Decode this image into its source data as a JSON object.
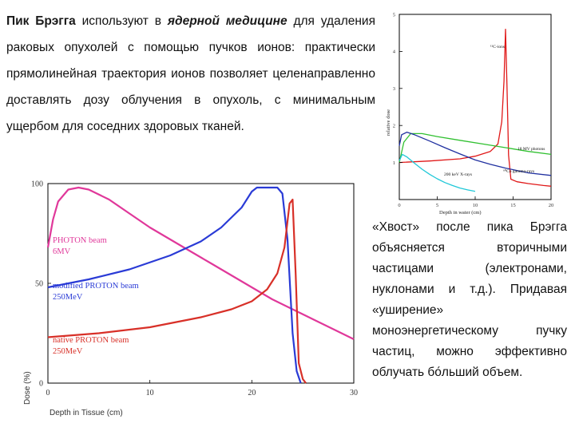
{
  "text_top": {
    "term": "Пик Брэгга",
    "part1": " используют в ",
    "emph": "ядерной медицине",
    "part2": " для удаления раковых опухолей с помощью пучков ионов: практически прямолинейная траектория ионов позволяет целенаправленно доставлять дозу облучения в опухоль, с минимальным ущербом для соседних здоровых тканей."
  },
  "text_right": "«Хвост» после пика Брэгга объясняется вторичными частицами (электронами, нуклонами и т.д.). Придавая «уширение» моноэнергетическому пучку частиц, можно эффективно облучать бо́льший объем.",
  "chart_data": [
    {
      "type": "line",
      "title": "",
      "xlabel": "Depth in Tissue (cm)",
      "ylabel": "Dose (%)",
      "xlim": [
        0,
        30
      ],
      "ylim": [
        0,
        100
      ],
      "x_ticks": [
        "0",
        "10",
        "20",
        "30"
      ],
      "y_ticks": [
        "0",
        "50",
        "100"
      ],
      "grid": false,
      "series": [
        {
          "name": "PHOTON beam",
          "name2": "6MV",
          "color": "#e0389a",
          "points": [
            [
              0,
              68
            ],
            [
              0.5,
              82
            ],
            [
              1,
              91
            ],
            [
              2,
              97
            ],
            [
              3,
              98
            ],
            [
              4,
              97
            ],
            [
              6,
              92
            ],
            [
              8,
              85
            ],
            [
              10,
              78
            ],
            [
              12,
              72
            ],
            [
              14,
              66
            ],
            [
              16,
              60
            ],
            [
              18,
              54
            ],
            [
              20,
              48
            ],
            [
              22,
              42
            ],
            [
              24,
              37
            ],
            [
              26,
              32
            ],
            [
              28,
              27
            ],
            [
              30,
              22
            ]
          ]
        },
        {
          "name": "modified PROTON beam",
          "name2": "250MeV",
          "color": "#2a3bd6",
          "points": [
            [
              0,
              48
            ],
            [
              4,
              52
            ],
            [
              8,
              57
            ],
            [
              12,
              64
            ],
            [
              15,
              71
            ],
            [
              17,
              78
            ],
            [
              19,
              88
            ],
            [
              20,
              96
            ],
            [
              20.5,
              98
            ],
            [
              21.5,
              98
            ],
            [
              22.5,
              98
            ],
            [
              23,
              95
            ],
            [
              23.5,
              72
            ],
            [
              24,
              25
            ],
            [
              24.4,
              6
            ],
            [
              24.8,
              0
            ]
          ]
        },
        {
          "name": "native PROTON beam",
          "name2": "250MeV",
          "color": "#d83028",
          "points": [
            [
              0,
              23
            ],
            [
              5,
              25
            ],
            [
              10,
              28
            ],
            [
              15,
              33
            ],
            [
              18,
              37
            ],
            [
              20,
              41
            ],
            [
              21.5,
              47
            ],
            [
              22.5,
              55
            ],
            [
              23.2,
              68
            ],
            [
              23.7,
              90
            ],
            [
              24,
              92
            ],
            [
              24.3,
              55
            ],
            [
              24.6,
              10
            ],
            [
              25,
              2
            ],
            [
              25.3,
              0
            ]
          ]
        }
      ]
    },
    {
      "type": "line",
      "title": "",
      "xlabel": "Depth in water (cm)",
      "ylabel": "relative dose",
      "xlim": [
        0,
        20
      ],
      "ylim": [
        0,
        5
      ],
      "x_ticks": [
        "0",
        "5",
        "10",
        "15",
        "20"
      ],
      "y_ticks": [
        "1",
        "2",
        "3",
        "4",
        "5"
      ],
      "grid": false,
      "annotations": [
        "¹²C-ions",
        "18 MV photons",
        "⁶⁰Co gamma-rays",
        "200 keV X-rays"
      ],
      "series": [
        {
          "name": "¹²C-ions",
          "color": "#e01818",
          "points": [
            [
              0,
              1.0
            ],
            [
              4,
              1.04
            ],
            [
              8,
              1.1
            ],
            [
              10,
              1.17
            ],
            [
              12,
              1.3
            ],
            [
              13,
              1.5
            ],
            [
              13.5,
              2.1
            ],
            [
              13.8,
              3.2
            ],
            [
              14,
              4.6
            ],
            [
              14.2,
              3.0
            ],
            [
              14.4,
              1.2
            ],
            [
              14.7,
              0.55
            ],
            [
              15.5,
              0.48
            ],
            [
              17,
              0.43
            ],
            [
              19,
              0.38
            ],
            [
              20,
              0.36
            ]
          ]
        },
        {
          "name": "18 MV photons",
          "color": "#30c030",
          "points": [
            [
              0,
              1.0
            ],
            [
              0.6,
              1.55
            ],
            [
              1.5,
              1.78
            ],
            [
              3,
              1.78
            ],
            [
              5,
              1.7
            ],
            [
              8,
              1.6
            ],
            [
              11,
              1.5
            ],
            [
              14,
              1.4
            ],
            [
              17,
              1.3
            ],
            [
              20,
              1.22
            ]
          ]
        },
        {
          "name": "⁶⁰Co gamma-rays",
          "color": "#2030a0",
          "points": [
            [
              0,
              1.45
            ],
            [
              0.3,
              1.75
            ],
            [
              1,
              1.82
            ],
            [
              2,
              1.75
            ],
            [
              4,
              1.58
            ],
            [
              6,
              1.4
            ],
            [
              8,
              1.23
            ],
            [
              10,
              1.07
            ],
            [
              12,
              0.95
            ],
            [
              14,
              0.85
            ],
            [
              17,
              0.72
            ],
            [
              20,
              0.65
            ]
          ]
        },
        {
          "name": "200 keV X-rays",
          "color": "#20c8d8",
          "points": [
            [
              0,
              1.05
            ],
            [
              0.4,
              1.22
            ],
            [
              1,
              1.15
            ],
            [
              2,
              0.98
            ],
            [
              3,
              0.82
            ],
            [
              4,
              0.68
            ],
            [
              5,
              0.56
            ],
            [
              6,
              0.46
            ],
            [
              7,
              0.38
            ],
            [
              8,
              0.31
            ],
            [
              9,
              0.26
            ],
            [
              10,
              0.22
            ]
          ]
        }
      ]
    }
  ]
}
